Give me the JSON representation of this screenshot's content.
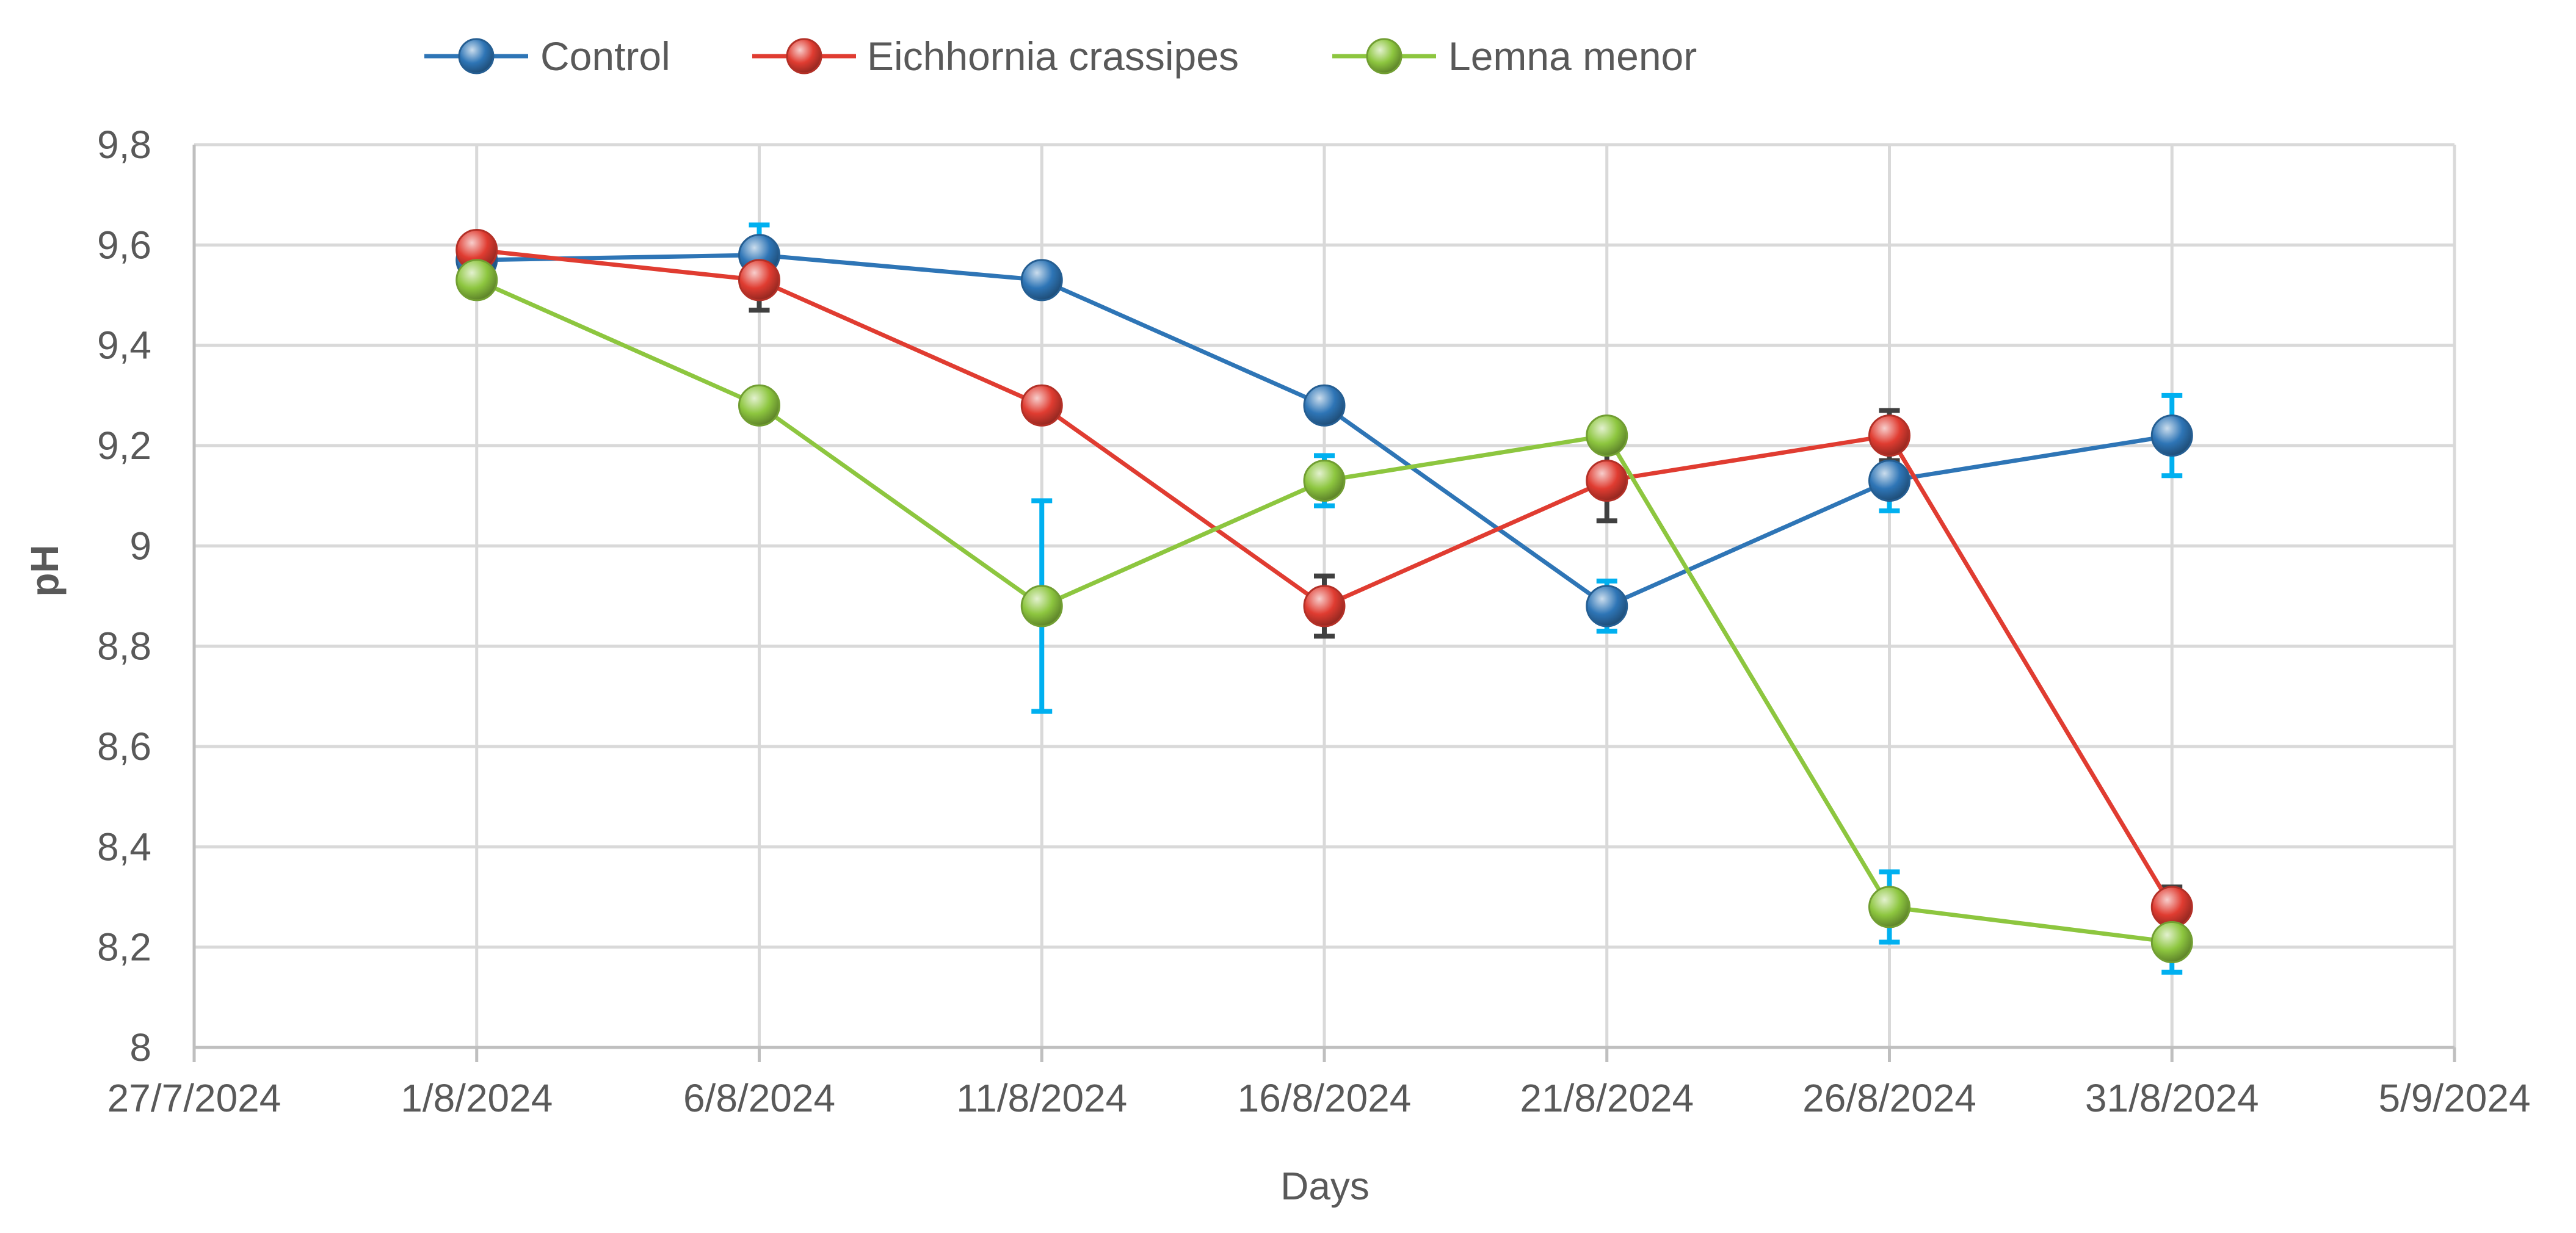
{
  "chart_data": {
    "type": "line",
    "title": "",
    "xlabel": "Days",
    "ylabel": "pH",
    "x_ticks": [
      "27/7/2024",
      "1/8/2024",
      "6/8/2024",
      "11/8/2024",
      "16/8/2024",
      "21/8/2024",
      "26/8/2024",
      "31/8/2024",
      "5/9/2024"
    ],
    "y_ticks": [
      "8",
      "8,2",
      "8,4",
      "8,6",
      "8,8",
      "9",
      "9,2",
      "9,4",
      "9,6",
      "9,8"
    ],
    "xlim": [
      "2024-07-27",
      "2024-09-05"
    ],
    "ylim": [
      8,
      9.8
    ],
    "grid": true,
    "legend_position": "top",
    "series": [
      {
        "name": "Control",
        "color": "#2E75B6",
        "error_bar_color": "#00B0F0",
        "points": [
          {
            "x": "2024-08-01",
            "y": 9.57,
            "err": 0.0
          },
          {
            "x": "2024-08-06",
            "y": 9.58,
            "err": 0.06
          },
          {
            "x": "2024-08-11",
            "y": 9.53,
            "err": 0.0
          },
          {
            "x": "2024-08-16",
            "y": 9.28,
            "err": 0.0
          },
          {
            "x": "2024-08-21",
            "y": 8.88,
            "err": 0.05
          },
          {
            "x": "2024-08-26",
            "y": 9.13,
            "err": 0.06
          },
          {
            "x": "2024-08-31",
            "y": 9.22,
            "err": 0.08
          }
        ]
      },
      {
        "name": "Eichhornia crassipes",
        "color": "#E03C31",
        "error_bar_color": "#404040",
        "points": [
          {
            "x": "2024-08-01",
            "y": 9.59,
            "err": 0.0
          },
          {
            "x": "2024-08-06",
            "y": 9.53,
            "err": 0.06
          },
          {
            "x": "2024-08-11",
            "y": 9.28,
            "err": 0.0
          },
          {
            "x": "2024-08-16",
            "y": 8.88,
            "err": 0.06
          },
          {
            "x": "2024-08-21",
            "y": 9.13,
            "err": 0.08
          },
          {
            "x": "2024-08-26",
            "y": 9.22,
            "err": 0.05
          },
          {
            "x": "2024-08-31",
            "y": 8.28,
            "err": 0.04
          }
        ]
      },
      {
        "name": "Lemna menor",
        "color": "#8DC63F",
        "error_bar_color": "#00B0F0",
        "points": [
          {
            "x": "2024-08-01",
            "y": 9.53,
            "err": 0.0
          },
          {
            "x": "2024-08-06",
            "y": 9.28,
            "err": 0.0
          },
          {
            "x": "2024-08-11",
            "y": 8.88,
            "err": 0.21
          },
          {
            "x": "2024-08-16",
            "y": 9.13,
            "err": 0.05
          },
          {
            "x": "2024-08-21",
            "y": 9.22,
            "err": 0.0
          },
          {
            "x": "2024-08-26",
            "y": 8.28,
            "err": 0.07
          },
          {
            "x": "2024-08-31",
            "y": 8.21,
            "err": 0.06
          }
        ]
      }
    ]
  }
}
